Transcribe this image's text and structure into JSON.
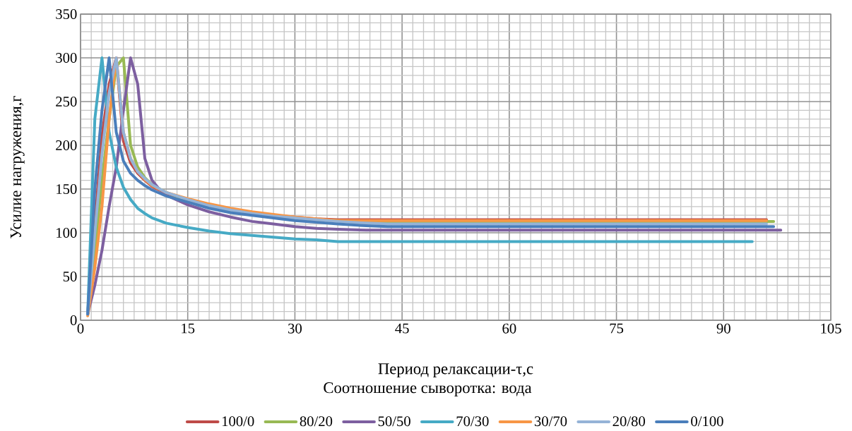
{
  "chart_data": {
    "type": "line",
    "xlabel": "Период релаксации-τ,с",
    "ylabel": "Усилие нагружения,г",
    "legend_title": "Соотношение сыворотка: вода",
    "xlim": [
      0,
      105
    ],
    "ylim": [
      0,
      350
    ],
    "xticks": [
      0,
      15,
      30,
      45,
      60,
      75,
      90,
      105
    ],
    "yticks": [
      0,
      50,
      100,
      150,
      200,
      250,
      300,
      350
    ],
    "grid": true,
    "legend": "bottom",
    "marker": "none",
    "line_style": "solid",
    "series": [
      {
        "name": "100/0",
        "color": "#be4b48",
        "x": [
          1,
          2,
          3,
          4,
          5,
          6,
          7,
          8,
          9,
          10,
          12,
          15,
          18,
          21,
          24,
          27,
          30,
          33,
          36,
          40,
          96
        ],
        "values": [
          7,
          110,
          210,
          270,
          300,
          205,
          180,
          168,
          160,
          153,
          145,
          138,
          132,
          127,
          123,
          120,
          118,
          116,
          115,
          115,
          115
        ]
      },
      {
        "name": "80/20",
        "color": "#98b954",
        "x": [
          1,
          2,
          3,
          4,
          5,
          6,
          7,
          8,
          9,
          10,
          12,
          15,
          18,
          21,
          24,
          27,
          30,
          33,
          36,
          40,
          43,
          97
        ],
        "values": [
          7,
          80,
          160,
          230,
          290,
          300,
          200,
          175,
          163,
          155,
          146,
          137,
          131,
          126,
          122,
          119,
          117,
          115,
          114,
          113,
          113,
          113
        ]
      },
      {
        "name": "50/50",
        "color": "#7d5fa0",
        "x": [
          1,
          2,
          3,
          4,
          5,
          6,
          7,
          8,
          9,
          10,
          11,
          12,
          15,
          18,
          21,
          24,
          27,
          30,
          33,
          36,
          40,
          98
        ],
        "values": [
          7,
          40,
          80,
          130,
          175,
          240,
          300,
          270,
          185,
          160,
          150,
          143,
          132,
          124,
          118,
          113,
          110,
          107,
          105,
          104,
          103,
          103
        ]
      },
      {
        "name": "70/30",
        "color": "#46aac5",
        "x": [
          1,
          2,
          3,
          4,
          5,
          6,
          7,
          8,
          9,
          10,
          12,
          15,
          18,
          21,
          24,
          27,
          30,
          33,
          36,
          94
        ],
        "values": [
          7,
          230,
          300,
          215,
          175,
          152,
          138,
          128,
          122,
          117,
          111,
          106,
          102,
          99,
          97,
          95,
          93,
          92,
          90,
          90
        ]
      },
      {
        "name": "30/70",
        "color": "#f79646",
        "x": [
          1,
          2,
          3,
          4,
          5,
          6,
          7,
          8,
          9,
          10,
          12,
          15,
          18,
          21,
          24,
          27,
          30,
          33,
          36,
          40,
          96
        ],
        "values": [
          5,
          60,
          130,
          230,
          300,
          215,
          185,
          170,
          161,
          154,
          146,
          139,
          133,
          128,
          124,
          121,
          118,
          116,
          114,
          114,
          114
        ]
      },
      {
        "name": "20/80",
        "color": "#95b3d7",
        "x": [
          1,
          2,
          3,
          4,
          5,
          6,
          7,
          8,
          9,
          10,
          12,
          15,
          18,
          21,
          24,
          27,
          30,
          33,
          36,
          40,
          43,
          96
        ],
        "values": [
          7,
          100,
          190,
          260,
          300,
          215,
          185,
          170,
          162,
          155,
          146,
          138,
          131,
          126,
          122,
          119,
          117,
          115,
          113,
          111,
          110,
          110
        ]
      },
      {
        "name": "0/100",
        "color": "#4a7ebb",
        "x": [
          1,
          2,
          3,
          4,
          5,
          6,
          7,
          8,
          9,
          10,
          12,
          15,
          18,
          21,
          24,
          27,
          30,
          33,
          36,
          40,
          43,
          97
        ],
        "values": [
          7,
          150,
          240,
          300,
          215,
          182,
          168,
          160,
          154,
          149,
          142,
          135,
          128,
          123,
          120,
          117,
          114,
          112,
          110,
          108,
          107,
          107
        ]
      }
    ]
  }
}
